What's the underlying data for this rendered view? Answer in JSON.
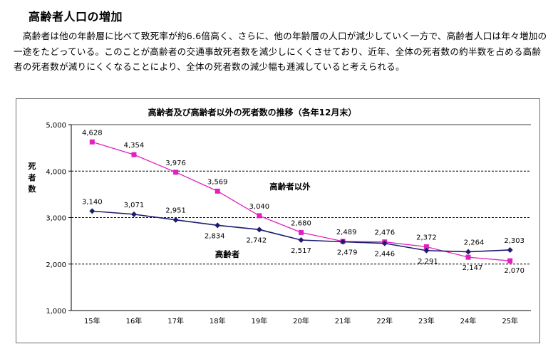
{
  "section": {
    "heading": "高齢者人口の増加",
    "paragraph": "高齢者は他の年齢層に比べて致死率が約6.6倍高く、さらに、他の年齢層の人口が減少していく一方で、高齢者人口は年々増加の一途をたどっている。このことが高齢者の交通事故死者数を減少しにくくさせており、近年、全体の死者数の約半数を占める高齢者の死者数が減りにくくなることにより、全体の死者数の減少幅も逓減していると考えられる。"
  },
  "chart_data": {
    "type": "line",
    "title": "高齢者及び高齢者以外の死者数の推移（各年12月末）",
    "ylabel": "死者数",
    "xlabel": "",
    "categories": [
      "15年",
      "16年",
      "17年",
      "18年",
      "19年",
      "20年",
      "21年",
      "22年",
      "23年",
      "24年",
      "25年"
    ],
    "ylim": [
      1000,
      5000
    ],
    "yticks": [
      "1,000",
      "2,000",
      "3,000",
      "4,000",
      "5,000"
    ],
    "grid": "dashed horizontal at 2,000 3,000 4,000",
    "series": [
      {
        "name": "高齢者以外",
        "color": "#e020c0",
        "marker": "square",
        "values": [
          4628,
          4354,
          3976,
          3569,
          3040,
          2680,
          2489,
          2476,
          2372,
          2147,
          2070
        ],
        "labels": [
          "4,628",
          "4,354",
          "3,976",
          "3,569",
          "3,040",
          "2,680",
          "2,489",
          "2,476",
          "2,372",
          "2,147",
          "2,070"
        ]
      },
      {
        "name": "高齢者",
        "color": "#1c1c6e",
        "marker": "diamond",
        "values": [
          3140,
          3071,
          2951,
          2834,
          2742,
          2517,
          2479,
          2446,
          2291,
          2264,
          2303
        ],
        "labels": [
          "3,140",
          "3,071",
          "2,951",
          "2,834",
          "2,742",
          "2,517",
          "2,479",
          "2,446",
          "2,291",
          "2,264",
          "2,303"
        ]
      }
    ]
  }
}
